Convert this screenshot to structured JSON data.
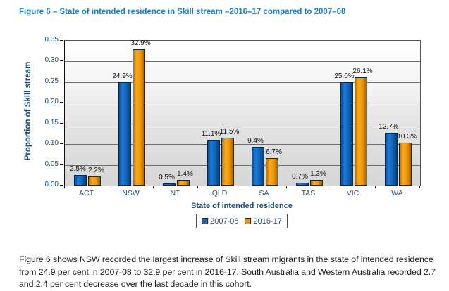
{
  "page": {
    "title": "Figure 6 – State of intended residence in Skill stream –2016–17 compared to 2007–08",
    "caption": "Figure 6 shows NSW recorded the largest increase of Skill stream migrants in the state of intended residence from 24.9 per cent in 2007-08 to 32.9 per cent in 2016-17.  South Australia and Western Australia recorded 2.7 and 2.4 per cent decrease over the last decade in this cohort."
  },
  "colors": {
    "title_blue": "#1b7ec2",
    "axis_text_navy": "#1f4e79",
    "data_label_black": "#111111",
    "series_2007_08_blue": "#1168bf",
    "series_2016_17_orange": "#f09800",
    "plot_gradient_top": "#ffffff",
    "plot_gradient_bottom": "#d6d6d6",
    "gridline_gray": "#6b6b6b"
  },
  "chart_data": {
    "type": "bar",
    "title": "Figure 6 – State of intended residence in Skill stream –2016–17 compared to 2007–08",
    "categories": [
      "ACT",
      "NSW",
      "NT",
      "QLD",
      "SA",
      "TAS",
      "VIC",
      "WA"
    ],
    "series": [
      {
        "name": "2007-08",
        "color": "#1168bf",
        "values": [
          0.025,
          0.249,
          0.005,
          0.111,
          0.094,
          0.007,
          0.25,
          0.127
        ],
        "labels": [
          "2.5%",
          "24.9%",
          "0.5%",
          "11.1%",
          "9.4%",
          "0.7%",
          "25.0%",
          "12.7%"
        ]
      },
      {
        "name": "2016-17",
        "color": "#f09800",
        "values": [
          0.022,
          0.329,
          0.014,
          0.115,
          0.067,
          0.013,
          0.261,
          0.103
        ],
        "labels": [
          "2.2%",
          "32.9%",
          "1.4%",
          "11.5%",
          "6.7%",
          "1.3%",
          "26.1%",
          "10.3%"
        ]
      }
    ],
    "xlabel": "State of intended residence",
    "ylabel": "Proportion of Skill stream",
    "ylim": [
      0,
      0.35
    ],
    "ytick_step": 0.05,
    "yticks": [
      "0.00",
      "0.05",
      "0.10",
      "0.15",
      "0.20",
      "0.25",
      "0.30",
      "0.35"
    ],
    "grid": true,
    "legend_position": "bottom"
  }
}
